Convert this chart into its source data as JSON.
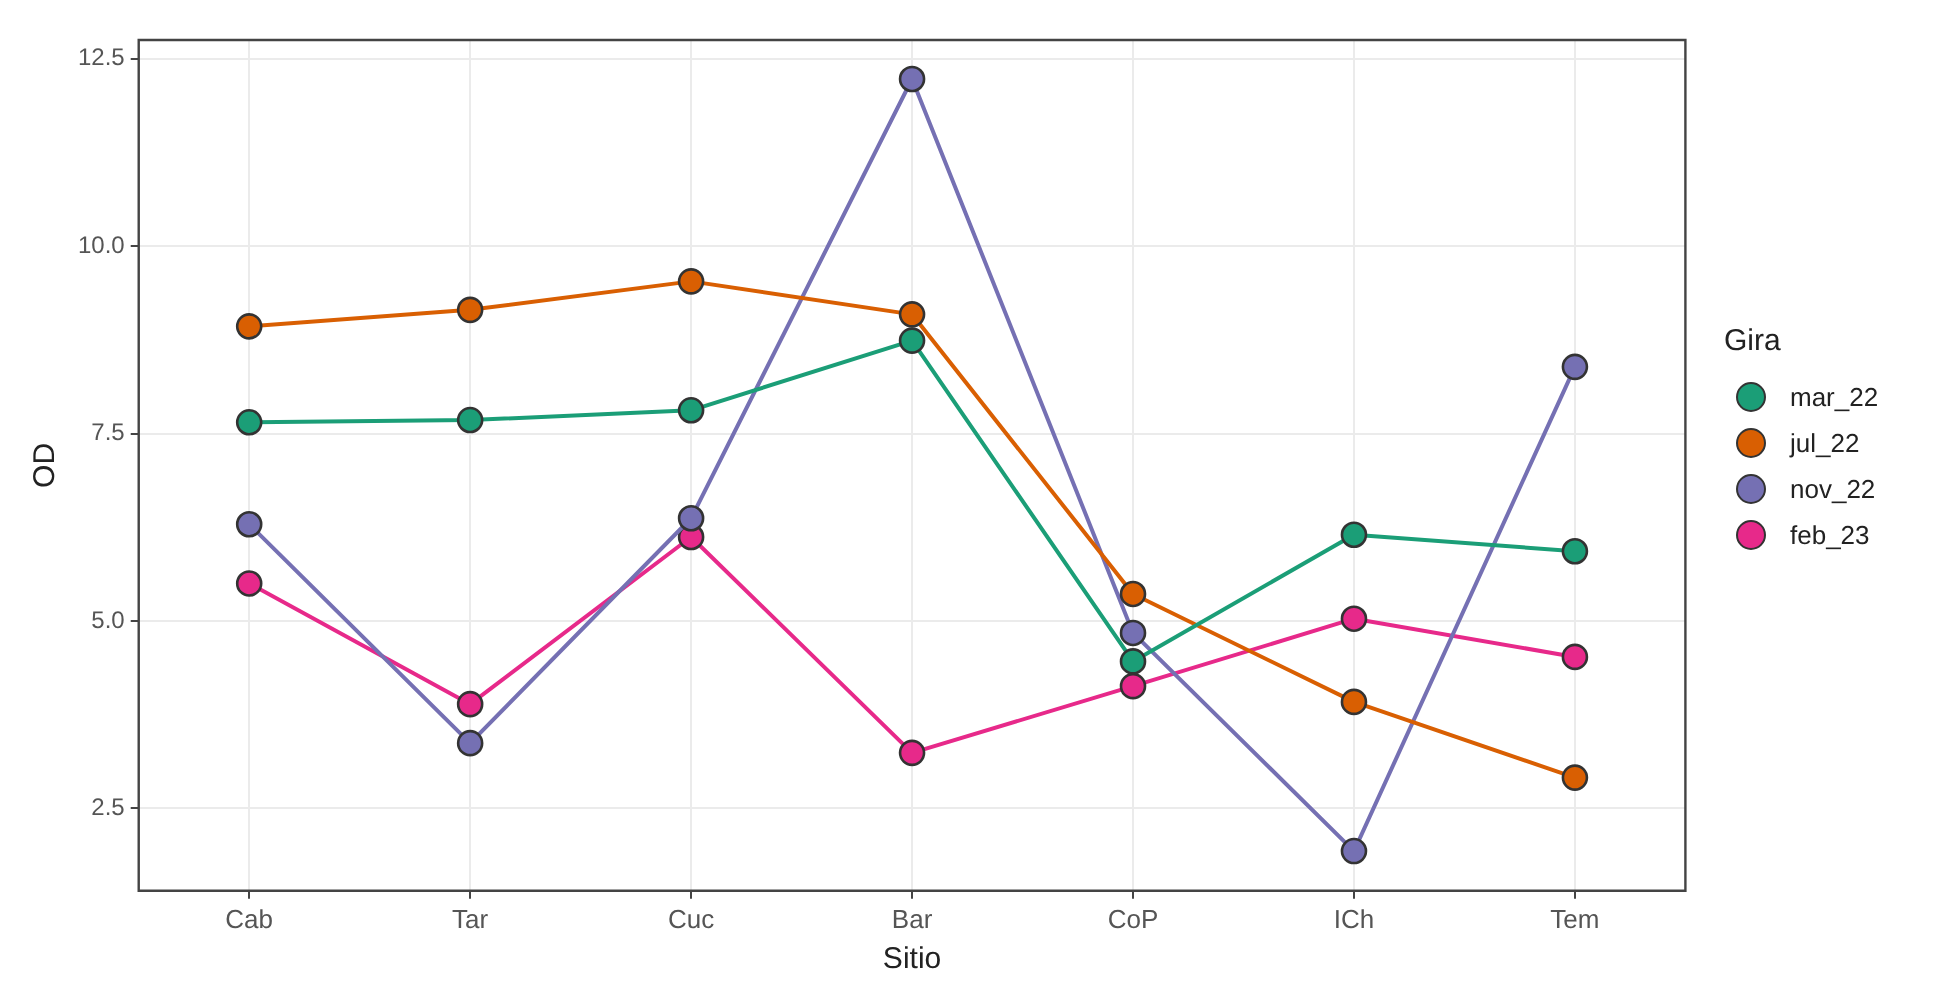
{
  "chart_data": {
    "type": "line",
    "xlabel": "Sitio",
    "ylabel": "OD",
    "legend_title": "Gira",
    "legend": "right",
    "grid": true,
    "marker": "circle",
    "line_style": "solid",
    "categories": [
      "Cab",
      "Tar",
      "Cuc",
      "Bar",
      "CoP",
      "ICh",
      "Tem"
    ],
    "ylim": [
      1.4,
      12.75
    ],
    "yticks": [
      {
        "value": 2.5,
        "label": "2.5"
      },
      {
        "value": 5,
        "label": "5.0"
      },
      {
        "value": 7.5,
        "label": "7.5"
      },
      {
        "value": 10,
        "label": "10.0"
      },
      {
        "value": 12.5,
        "label": "12.5"
      }
    ],
    "series": [
      {
        "name": "mar_22",
        "color": "#1b9e77",
        "values": [
          7.65,
          7.68,
          7.81,
          8.74,
          4.46,
          6.15,
          5.93
        ]
      },
      {
        "name": "jul_22",
        "color": "#d95f02",
        "values": [
          8.93,
          9.15,
          9.53,
          9.09,
          5.36,
          3.92,
          2.91
        ]
      },
      {
        "name": "nov_22",
        "color": "#7570b3",
        "values": [
          6.29,
          3.37,
          6.37,
          12.23,
          4.84,
          1.93,
          8.39
        ]
      },
      {
        "name": "feb_23",
        "color": "#e7298a",
        "values": [
          5.5,
          3.89,
          6.12,
          3.24,
          4.13,
          5.03,
          4.52
        ]
      }
    ]
  }
}
